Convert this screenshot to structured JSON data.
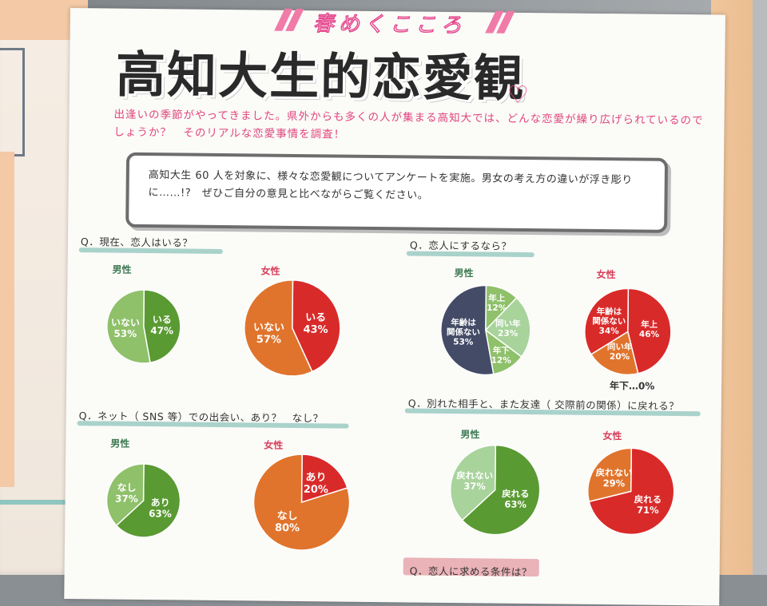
{
  "page": {
    "kicker": "春めくこころ",
    "title": "高知大生的恋愛観",
    "intro": "出逢いの季節がやってきました。県外からも多くの人が集まる高知大では、どんな恋愛が繰り広げられているのでしょうか？　そのリアルな恋愛事情を調査！",
    "box_text": "高知大生 60 人を対象に、様々な恋愛観についてアンケートを実施。男女の考え方の違いが浮き彫りに……!?　ぜひご自分の意見と比べながらご覧ください。",
    "male_label": "男性",
    "female_label": "女性",
    "footer_q_right": "Q．恋人に求める条件は？",
    "zero_note": "年下…0%"
  },
  "colors": {
    "green_dark": "#5a9a32",
    "green_light": "#8fc06a",
    "green_pale": "#a8d39b",
    "orange": "#e0742c",
    "red": "#d92a2a",
    "navy": "#434b66",
    "pink_text": "#e0467e"
  },
  "chart_data": [
    {
      "type": "pie",
      "title": "Q．現在、恋人はいる？",
      "groups": [
        {
          "name": "男性",
          "slices": [
            {
              "label": "いる",
              "value": 47
            },
            {
              "label": "いない",
              "value": 53
            }
          ]
        },
        {
          "name": "女性",
          "slices": [
            {
              "label": "いる",
              "value": 43
            },
            {
              "label": "いない",
              "value": 57
            }
          ]
        }
      ]
    },
    {
      "type": "pie",
      "title": "Q．恋人にするなら？",
      "groups": [
        {
          "name": "男性",
          "slices": [
            {
              "label": "年上",
              "value": 12
            },
            {
              "label": "同い年",
              "value": 23
            },
            {
              "label": "年下",
              "value": 12
            },
            {
              "label": "年齢は関係ない",
              "value": 53
            }
          ]
        },
        {
          "name": "女性",
          "slices": [
            {
              "label": "年上",
              "value": 46
            },
            {
              "label": "同い年",
              "value": 20
            },
            {
              "label": "年齢は関係ない",
              "value": 34
            },
            {
              "label": "年下",
              "value": 0
            }
          ]
        }
      ]
    },
    {
      "type": "pie",
      "title": "Q．ネット（ SNS 等）での出会い、あり？　なし？",
      "groups": [
        {
          "name": "男性",
          "slices": [
            {
              "label": "あり",
              "value": 63
            },
            {
              "label": "なし",
              "value": 37
            }
          ]
        },
        {
          "name": "女性",
          "slices": [
            {
              "label": "あり",
              "value": 20
            },
            {
              "label": "なし",
              "value": 80
            }
          ]
        }
      ]
    },
    {
      "type": "pie",
      "title": "Q．別れた相手と、また友達（ 交際前の関係）に戻れる？",
      "groups": [
        {
          "name": "男性",
          "slices": [
            {
              "label": "戻れる",
              "value": 63
            },
            {
              "label": "戻れない",
              "value": 37
            }
          ]
        },
        {
          "name": "女性",
          "slices": [
            {
              "label": "戻れる",
              "value": 71
            },
            {
              "label": "戻れない",
              "value": 29
            }
          ]
        }
      ]
    }
  ]
}
